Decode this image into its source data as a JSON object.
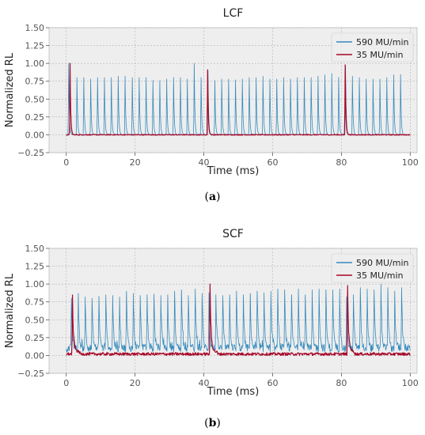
{
  "chart_data": [
    {
      "type": "line",
      "title": "LCF",
      "xlabel": "Time (ms)",
      "ylabel": "Normalized RL",
      "xlim": [
        -5,
        102
      ],
      "ylim": [
        -0.25,
        1.5
      ],
      "xticks": [
        0,
        20,
        40,
        60,
        80,
        100
      ],
      "yticks": [
        -0.25,
        0.0,
        0.25,
        0.5,
        0.75,
        1.0,
        1.25,
        1.5
      ],
      "ytick_labels": [
        "−0.25",
        "0.00",
        "0.25",
        "0.50",
        "0.75",
        "1.00",
        "1.25",
        "1.50"
      ],
      "grid": true,
      "legend": "top-right",
      "caption": "a",
      "series": [
        {
          "name": "590 MU/min",
          "color": "#348abd",
          "pulse_times": [
            0.7,
            3.1,
            5.1,
            7.1,
            9.1,
            11.1,
            13.1,
            15.1,
            17.1,
            19.2,
            21.2,
            23.2,
            25.2,
            27.2,
            29.2,
            31.2,
            33.2,
            35.2,
            37.2,
            39.2,
            41.2,
            43.2,
            45.2,
            47.2,
            49.2,
            51.2,
            53.2,
            55.2,
            57.2,
            59.2,
            61.2,
            63.2,
            65.2,
            67.2,
            69.2,
            71.2,
            73.2,
            75.2,
            77.2,
            79.2,
            81.2,
            83.2,
            85.2,
            87.2,
            89.2,
            91.2,
            93.2,
            95.2,
            97.2
          ],
          "pulse_peaks": [
            1.0,
            0.8,
            0.8,
            0.78,
            0.8,
            0.8,
            0.8,
            0.82,
            0.82,
            0.8,
            0.8,
            0.8,
            0.76,
            0.76,
            0.78,
            0.8,
            0.8,
            0.78,
            1.0,
            0.8,
            0.9,
            0.76,
            0.78,
            0.78,
            0.77,
            0.78,
            0.8,
            0.8,
            0.82,
            0.78,
            0.78,
            0.8,
            0.78,
            0.8,
            0.8,
            0.8,
            0.82,
            0.84,
            0.86,
            0.8,
            0.97,
            0.82,
            0.8,
            0.78,
            0.78,
            0.78,
            0.8,
            0.84,
            0.84
          ],
          "baseline": 0.0
        },
        {
          "name": "35 MU/min",
          "color": "#a60628",
          "pulse_times": [
            1.1,
            41.1,
            81.1
          ],
          "pulse_peaks": [
            1.0,
            0.91,
            0.98
          ],
          "baseline": 0.0
        }
      ]
    },
    {
      "type": "line",
      "title": "SCF",
      "xlabel": "Time (ms)",
      "ylabel": "Normalized RL",
      "xlim": [
        -5,
        102
      ],
      "ylim": [
        -0.25,
        1.5
      ],
      "xticks": [
        0,
        20,
        40,
        60,
        80,
        100
      ],
      "yticks": [
        -0.25,
        0.0,
        0.25,
        0.5,
        0.75,
        1.0,
        1.25,
        1.5
      ],
      "ytick_labels": [
        "−0.25",
        "0.00",
        "0.25",
        "0.50",
        "0.75",
        "1.00",
        "1.25",
        "1.50"
      ],
      "grid": true,
      "legend": "top-right",
      "caption": "b",
      "series": [
        {
          "name": "590 MU/min",
          "color": "#348abd",
          "pulse_times": [
            1.5,
            3.5,
            5.5,
            7.5,
            9.5,
            11.5,
            13.5,
            15.5,
            17.5,
            19.5,
            21.5,
            23.5,
            25.5,
            27.5,
            29.5,
            31.5,
            33.5,
            35.5,
            37.5,
            39.5,
            41.5,
            43.5,
            45.5,
            47.5,
            49.5,
            51.5,
            53.5,
            55.5,
            57.5,
            59.5,
            61.5,
            63.5,
            65.5,
            67.5,
            69.5,
            71.5,
            73.5,
            75.5,
            77.5,
            79.5,
            81.5,
            83.5,
            85.5,
            87.5,
            89.5,
            91.5,
            93.5,
            95.5,
            97.5
          ],
          "pulse_peaks": [
            0.8,
            0.87,
            0.82,
            0.8,
            0.83,
            0.85,
            0.84,
            0.82,
            0.9,
            0.87,
            0.84,
            0.85,
            0.86,
            0.84,
            0.85,
            0.9,
            0.92,
            0.84,
            0.93,
            0.87,
            0.88,
            0.85,
            0.84,
            0.84,
            0.9,
            0.85,
            0.87,
            0.9,
            0.88,
            0.9,
            0.93,
            0.92,
            0.85,
            0.93,
            0.85,
            0.92,
            0.93,
            0.92,
            0.92,
            0.93,
            0.82,
            0.85,
            0.95,
            0.93,
            0.92,
            1.0,
            0.95,
            0.9,
            0.95
          ],
          "baseline": 0.1
        },
        {
          "name": "35 MU/min",
          "color": "#a60628",
          "pulse_times": [
            1.8,
            41.8,
            81.8
          ],
          "pulse_peaks": [
            0.83,
            1.0,
            0.98
          ],
          "baseline": 0.02
        }
      ]
    }
  ]
}
